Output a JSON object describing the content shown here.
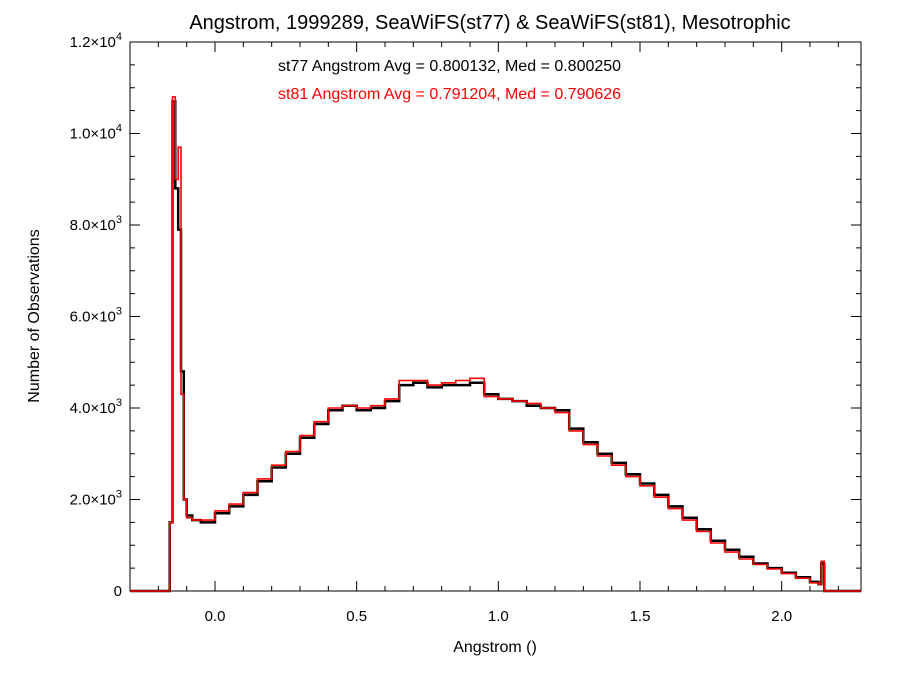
{
  "chart_data": {
    "type": "line",
    "title": "Angstrom, 1999289, SeaWiFS(st77) & SeaWiFS(st81), Mesotrophic",
    "xlabel": "Angstrom ()",
    "ylabel": "Number of Observations",
    "xlim": [
      -0.3,
      2.28
    ],
    "ylim": [
      0,
      12000
    ],
    "x_ticks": [
      {
        "value": 0.0,
        "label": "0.0"
      },
      {
        "value": 0.5,
        "label": "0.5"
      },
      {
        "value": 1.0,
        "label": "1.0"
      },
      {
        "value": 1.5,
        "label": "1.5"
      },
      {
        "value": 2.0,
        "label": "2.0"
      }
    ],
    "y_ticks": [
      {
        "value": 0,
        "mant": "0",
        "exp": ""
      },
      {
        "value": 2000,
        "mant": "2.0×10",
        "exp": "3"
      },
      {
        "value": 4000,
        "mant": "4.0×10",
        "exp": "3"
      },
      {
        "value": 6000,
        "mant": "6.0×10",
        "exp": "3"
      },
      {
        "value": 8000,
        "mant": "8.0×10",
        "exp": "3"
      },
      {
        "value": 10000,
        "mant": "1.0×10",
        "exp": "4"
      },
      {
        "value": 12000,
        "mant": "1.2×10",
        "exp": "4"
      }
    ],
    "grid": false,
    "annotations": [
      {
        "text": "st77 Angstrom Avg = 0.800132, Med = 0.800250",
        "color": "#000000"
      },
      {
        "text": "st81 Angstrom Avg = 0.791204, Med = 0.790626",
        "color": "#ff0000"
      }
    ],
    "series": [
      {
        "color": "#000000",
        "x": [
          -0.3,
          -0.18,
          -0.17,
          -0.16,
          -0.15,
          -0.14,
          -0.13,
          -0.12,
          -0.11,
          -0.1,
          -0.08,
          -0.05,
          0.0,
          0.05,
          0.1,
          0.15,
          0.2,
          0.25,
          0.3,
          0.35,
          0.4,
          0.45,
          0.5,
          0.55,
          0.6,
          0.65,
          0.7,
          0.75,
          0.8,
          0.85,
          0.9,
          0.95,
          1.0,
          1.05,
          1.1,
          1.15,
          1.2,
          1.25,
          1.3,
          1.35,
          1.4,
          1.45,
          1.5,
          1.55,
          1.6,
          1.65,
          1.7,
          1.75,
          1.8,
          1.85,
          1.9,
          1.95,
          2.0,
          2.05,
          2.1,
          2.13,
          2.14,
          2.15,
          2.2,
          2.28
        ],
        "values": [
          0,
          0,
          0,
          1500,
          10700,
          8800,
          7900,
          4800,
          2000,
          1650,
          1550,
          1500,
          1700,
          1850,
          2100,
          2400,
          2700,
          3000,
          3350,
          3650,
          3950,
          4050,
          3950,
          4000,
          4150,
          4500,
          4550,
          4450,
          4500,
          4500,
          4550,
          4300,
          4200,
          4150,
          4050,
          4000,
          3950,
          3550,
          3250,
          3000,
          2800,
          2550,
          2350,
          2100,
          1850,
          1600,
          1350,
          1100,
          900,
          750,
          600,
          500,
          400,
          300,
          200,
          150,
          600,
          0,
          0,
          0
        ]
      },
      {
        "color": "#ff0000",
        "x": [
          -0.3,
          -0.18,
          -0.17,
          -0.16,
          -0.15,
          -0.14,
          -0.13,
          -0.12,
          -0.11,
          -0.1,
          -0.08,
          -0.05,
          0.0,
          0.05,
          0.1,
          0.15,
          0.2,
          0.25,
          0.3,
          0.35,
          0.4,
          0.45,
          0.5,
          0.55,
          0.6,
          0.65,
          0.7,
          0.75,
          0.8,
          0.85,
          0.9,
          0.95,
          1.0,
          1.05,
          1.1,
          1.15,
          1.2,
          1.25,
          1.3,
          1.35,
          1.4,
          1.45,
          1.5,
          1.55,
          1.6,
          1.65,
          1.7,
          1.75,
          1.8,
          1.85,
          1.9,
          1.95,
          2.0,
          2.05,
          2.1,
          2.13,
          2.14,
          2.15,
          2.2,
          2.28
        ],
        "values": [
          0,
          0,
          0,
          1500,
          10800,
          9000,
          9700,
          4300,
          2000,
          1600,
          1550,
          1550,
          1750,
          1900,
          2150,
          2450,
          2750,
          3050,
          3400,
          3700,
          4000,
          4050,
          4000,
          4050,
          4200,
          4600,
          4600,
          4500,
          4550,
          4600,
          4650,
          4250,
          4200,
          4150,
          4100,
          4000,
          3900,
          3500,
          3200,
          2950,
          2750,
          2500,
          2300,
          2050,
          1800,
          1550,
          1300,
          1050,
          850,
          700,
          580,
          480,
          380,
          280,
          180,
          150,
          650,
          0,
          0,
          0
        ]
      }
    ]
  }
}
